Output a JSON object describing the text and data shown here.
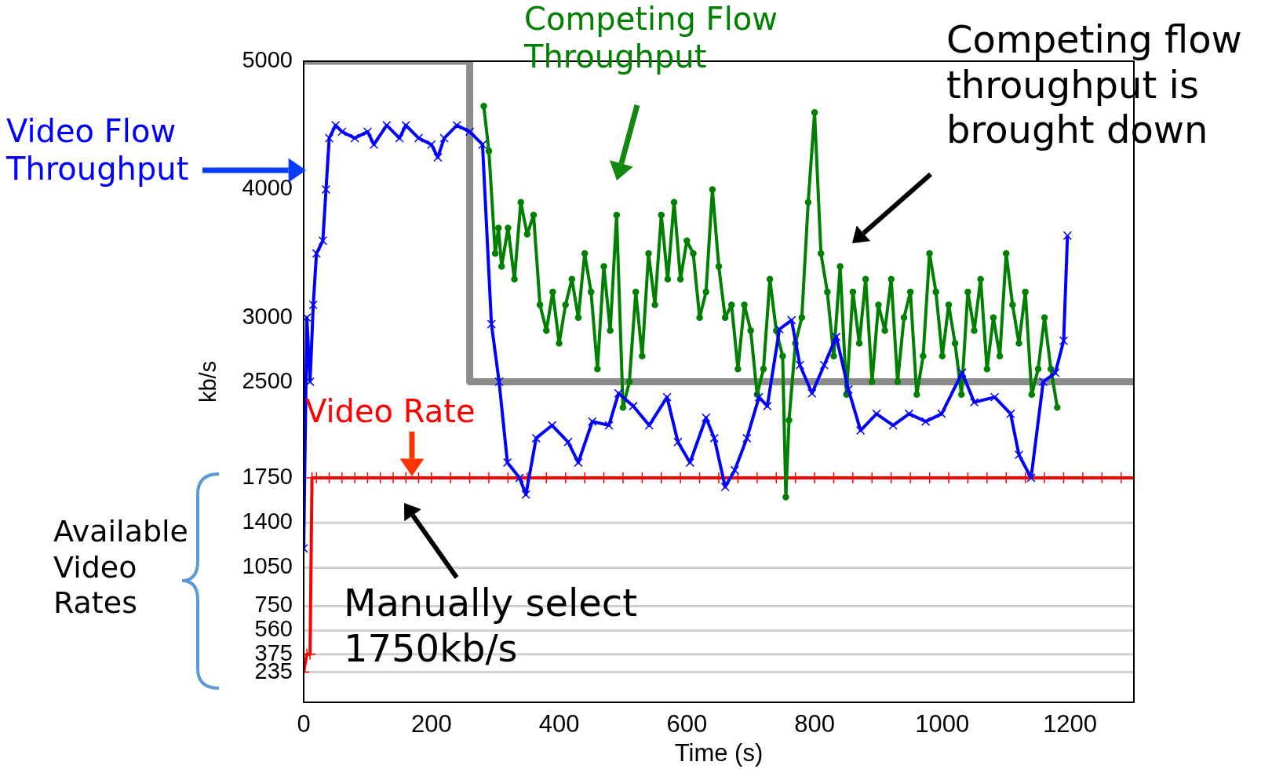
{
  "chart_data": {
    "type": "line",
    "xlabel": "Time (s)",
    "ylabel": "kb/s",
    "xlim": [
      0,
      1300
    ],
    "xticks": [
      0,
      200,
      400,
      600,
      800,
      1000,
      1200
    ],
    "ylim": [
      0,
      5000
    ],
    "yticks": [
      235,
      375,
      560,
      750,
      1050,
      1400,
      1750,
      2500,
      3000,
      4000,
      5000
    ],
    "grid": false,
    "legend": false,
    "line_style": "solid",
    "series": [
      {
        "name": "Video Flow Throughput",
        "color": "#0000ff",
        "marker": "cross",
        "x": [
          0,
          5,
          10,
          15,
          20,
          30,
          35,
          40,
          50,
          60,
          80,
          100,
          110,
          130,
          150,
          160,
          180,
          200,
          210,
          220,
          240,
          260,
          280,
          294,
          306,
          319,
          338,
          348,
          364,
          389,
          414,
          430,
          452,
          478,
          493,
          516,
          541,
          569,
          586,
          605,
          630,
          643,
          660,
          675,
          694,
          713,
          726,
          745,
          764,
          777,
          796,
          815,
          834,
          853,
          872,
          897,
          923,
          948,
          974,
          999,
          1031,
          1050,
          1082,
          1107,
          1120,
          1139,
          1158,
          1177,
          1190,
          1196
        ],
        "values": [
          1200,
          3000,
          2500,
          3100,
          3500,
          3600,
          4000,
          4400,
          4500,
          4450,
          4400,
          4450,
          4350,
          4500,
          4400,
          4500,
          4400,
          4350,
          4250,
          4400,
          4500,
          4450,
          4350,
          2950,
          2500,
          1870,
          1750,
          1620,
          2060,
          2160,
          2030,
          1870,
          2190,
          2160,
          2410,
          2310,
          2160,
          2380,
          2030,
          1870,
          2220,
          2060,
          1680,
          1810,
          2060,
          2380,
          2310,
          2910,
          2980,
          2630,
          2410,
          2630,
          2850,
          2440,
          2120,
          2250,
          2160,
          2250,
          2190,
          2250,
          2570,
          2340,
          2380,
          2250,
          1930,
          1750,
          2500,
          2570,
          2820,
          3640
        ]
      },
      {
        "name": "Competing Flow Throughput",
        "color": "#008000",
        "marker": "circle",
        "x": [
          282,
          290,
          300,
          305,
          310,
          320,
          330,
          340,
          350,
          360,
          370,
          380,
          390,
          400,
          410,
          420,
          430,
          440,
          450,
          460,
          470,
          480,
          490,
          500,
          510,
          520,
          530,
          540,
          550,
          560,
          570,
          580,
          590,
          600,
          610,
          620,
          630,
          640,
          650,
          660,
          670,
          680,
          690,
          700,
          710,
          720,
          730,
          740,
          750,
          755,
          760,
          770,
          780,
          790,
          800,
          810,
          820,
          830,
          840,
          850,
          860,
          870,
          880,
          890,
          900,
          910,
          920,
          930,
          940,
          950,
          960,
          970,
          980,
          990,
          1000,
          1010,
          1020,
          1030,
          1040,
          1050,
          1060,
          1070,
          1080,
          1090,
          1100,
          1110,
          1120,
          1130,
          1140,
          1150,
          1160,
          1170,
          1180
        ],
        "values": [
          4650,
          4300,
          3500,
          3700,
          3400,
          3700,
          3300,
          3900,
          3650,
          3800,
          3100,
          2900,
          3200,
          2800,
          3100,
          3300,
          3000,
          3500,
          3200,
          2600,
          3400,
          2900,
          3800,
          2300,
          2500,
          3200,
          2700,
          3500,
          3100,
          3800,
          3300,
          3900,
          3300,
          3600,
          3500,
          3000,
          3200,
          4000,
          3400,
          3000,
          3100,
          2600,
          3100,
          2900,
          2400,
          2600,
          3300,
          2900,
          2700,
          1600,
          2200,
          2800,
          3000,
          3900,
          4600,
          3500,
          3200,
          2700,
          3400,
          2400,
          3200,
          2800,
          3300,
          2500,
          3100,
          2900,
          3300,
          2500,
          3000,
          3200,
          2400,
          2700,
          3500,
          3200,
          2700,
          3100,
          2800,
          2400,
          3200,
          2900,
          3300,
          2600,
          3000,
          2700,
          3500,
          3100,
          2800,
          3200,
          2400,
          2600,
          3000,
          2600,
          2300
        ]
      },
      {
        "name": "Video Rate",
        "color": "#ff0000",
        "marker": "plus",
        "x": [
          0,
          5,
          10,
          13,
          20,
          40,
          60,
          80,
          100,
          120,
          140,
          160,
          180,
          200,
          230,
          260,
          290,
          320,
          350,
          380,
          410,
          440,
          470,
          500,
          530,
          560,
          590,
          620,
          650,
          680,
          710,
          740,
          770,
          800,
          830,
          860,
          890,
          920,
          950,
          980,
          1010,
          1040,
          1070,
          1100,
          1130,
          1160,
          1190,
          1220,
          1250,
          1280,
          1300
        ],
        "values": [
          235,
          375,
          375,
          1750,
          1750,
          1750,
          1750,
          1750,
          1750,
          1750,
          1750,
          1750,
          1750,
          1750,
          1750,
          1750,
          1750,
          1750,
          1750,
          1750,
          1750,
          1750,
          1750,
          1750,
          1750,
          1750,
          1750,
          1750,
          1750,
          1750,
          1750,
          1750,
          1750,
          1750,
          1750,
          1750,
          1750,
          1750,
          1750,
          1750,
          1750,
          1750,
          1750,
          1750,
          1750,
          1750,
          1750,
          1750,
          1750,
          1750,
          1750
        ]
      },
      {
        "color": "#8c8c8c",
        "marker": "none",
        "x": [
          0,
          260,
          260,
          1300
        ],
        "values": [
          5000,
          5000,
          2500,
          2500
        ]
      }
    ],
    "ref_lines": [
      {
        "axis": "y",
        "value": 235,
        "color": "#d0d0d0"
      },
      {
        "axis": "y",
        "value": 375,
        "color": "#d0d0d0"
      },
      {
        "axis": "y",
        "value": 560,
        "color": "#d0d0d0"
      },
      {
        "axis": "y",
        "value": 750,
        "color": "#d0d0d0"
      },
      {
        "axis": "y",
        "value": 1050,
        "color": "#d0d0d0"
      },
      {
        "axis": "y",
        "value": 1400,
        "color": "#d0d0d0"
      }
    ],
    "annotations": [
      "Competing flow throughput is brought down",
      "Available Video Rates",
      "Manually select 1750kb/s"
    ]
  }
}
